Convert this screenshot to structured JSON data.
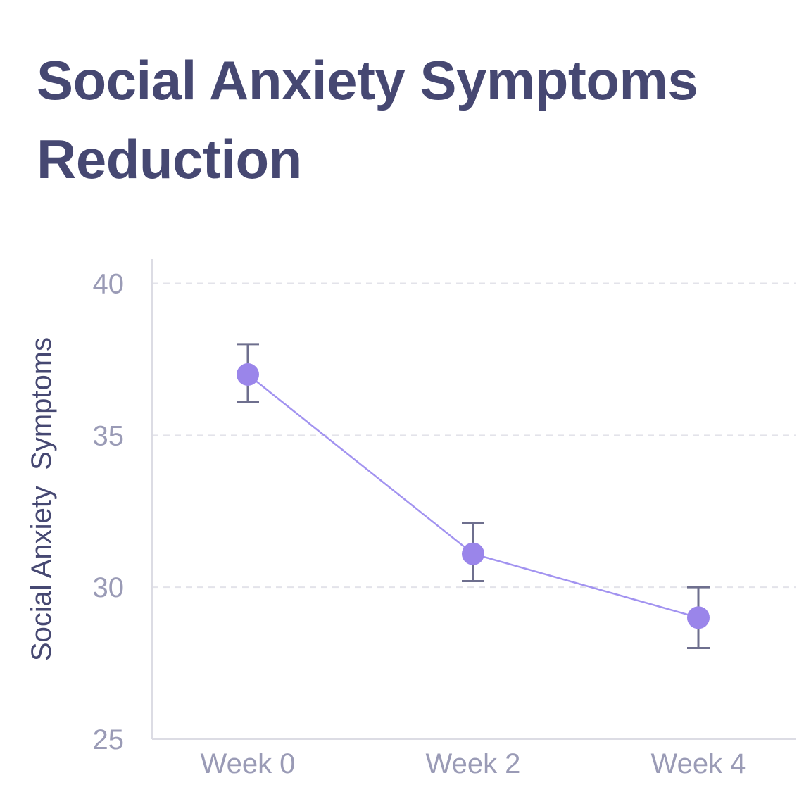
{
  "chart_data": {
    "type": "line",
    "title": "Social Anxiety Symptoms Reduction",
    "xlabel": "",
    "ylabel": "Social Anxiety  Symptoms",
    "categories": [
      "Week 0",
      "Week 2",
      "Week 4"
    ],
    "series": [
      {
        "name": "Social Anxiety Symptoms",
        "values": [
          37.0,
          31.1,
          29.0
        ],
        "error_low": [
          36.1,
          30.2,
          28.0
        ],
        "error_high": [
          38.0,
          32.1,
          30.0
        ]
      }
    ],
    "ylim": [
      25,
      40.8
    ],
    "yticks": [
      25,
      30,
      35,
      40
    ],
    "grid": "horizontal-dashed",
    "colors": {
      "line": "#a293f0",
      "marker": "#9a85ea",
      "errorbar": "#6e6f8e",
      "grid": "#e3e3ea",
      "axis": "#dcdce4",
      "title": "#464872",
      "tick": "#9a9bb6"
    }
  }
}
